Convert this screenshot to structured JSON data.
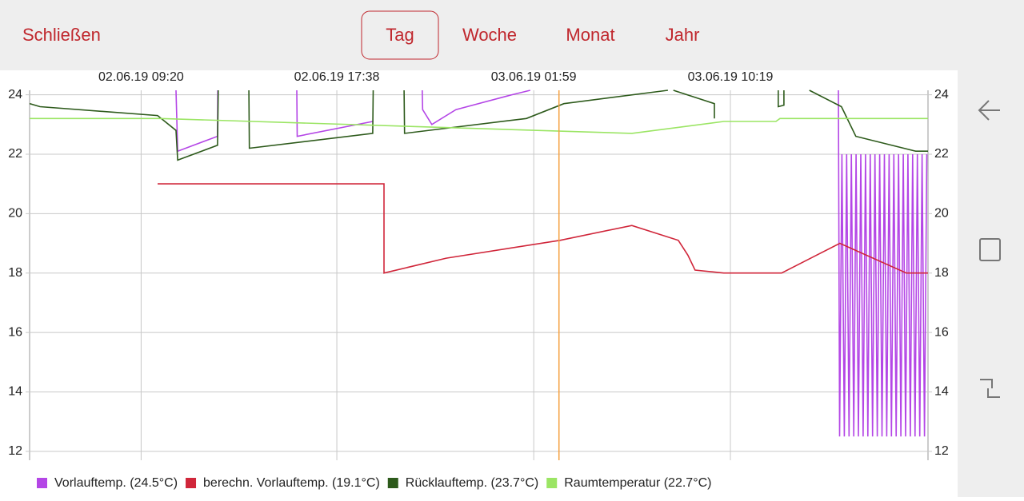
{
  "header": {
    "close": "Schließen",
    "tabs": [
      "Tag",
      "Woche",
      "Monat",
      "Jahr"
    ],
    "selected_tab": 0
  },
  "chart_data": {
    "type": "line",
    "xlim": [
      4.6,
      42.7
    ],
    "xticks": [
      {
        "value": 9.33,
        "label": "02.06.19 09:20"
      },
      {
        "value": 17.63,
        "label": "02.06.19 17:38"
      },
      {
        "value": 25.98,
        "label": "03.06.19 01:59"
      },
      {
        "value": 34.32,
        "label": "03.06.19 10:19"
      }
    ],
    "ylim": [
      11.7,
      24.15
    ],
    "yticks": [
      12,
      14,
      16,
      18,
      20,
      22,
      24
    ],
    "grid": true,
    "cursor_x": 27.05,
    "cursor_color": "#f5a040",
    "series": [
      {
        "name": "Vorlauftemp. (24.5°C)",
        "color": "#b446e6",
        "x": [
          10.81,
          10.88,
          12.57,
          12.58,
          null,
          15.93,
          15.95,
          19.15,
          null,
          21.25,
          21.27,
          21.66,
          22.68,
          25.05,
          25.83,
          null,
          38.9,
          38.95,
          39.05,
          39.15,
          39.25,
          39.35,
          39.45,
          39.55,
          39.65,
          39.75,
          39.85,
          39.95,
          40.05,
          40.15,
          40.25,
          40.35,
          40.45,
          40.55,
          40.65,
          40.75,
          40.85,
          40.95,
          41.05,
          41.15,
          41.25,
          41.35,
          41.45,
          41.55,
          41.65,
          41.75,
          41.85,
          41.95,
          42.05,
          42.15,
          42.25,
          42.35,
          42.45,
          42.55,
          42.65
        ],
        "values": [
          24.15,
          22.1,
          22.6,
          24.15,
          null,
          24.15,
          22.6,
          23.1,
          null,
          24.15,
          23.5,
          23.0,
          23.5,
          24.0,
          24.15,
          null,
          24.15,
          12.5,
          22.0,
          12.5,
          22.0,
          12.5,
          22.0,
          12.5,
          22.0,
          12.5,
          22.0,
          12.5,
          22.0,
          12.5,
          22.0,
          12.5,
          22.0,
          12.5,
          22.0,
          12.5,
          22.0,
          12.5,
          22.0,
          12.5,
          22.0,
          12.5,
          22.0,
          12.5,
          22.0,
          12.5,
          22.0,
          12.5,
          22.0,
          12.5,
          22.0,
          12.5,
          22.0,
          12.5,
          22.0
        ]
      },
      {
        "name": "berechn. Vorlauftemp. (19.1°C)",
        "color": "#d0263a",
        "x": [
          10.03,
          19.63,
          19.63,
          22.27,
          27.09,
          30.14,
          32.11,
          32.52,
          32.82,
          34.04,
          36.49,
          38.96,
          41.78,
          42.7
        ],
        "values": [
          21.0,
          21.0,
          18.0,
          18.5,
          19.1,
          19.6,
          19.1,
          18.6,
          18.1,
          18.0,
          18.0,
          19.0,
          18.0,
          18.0
        ]
      },
      {
        "name": "Rücklauftemp. (23.7°C)",
        "color": "#2d5a1b",
        "x": [
          4.6,
          5.04,
          10.03,
          10.81,
          10.88,
          12.57,
          12.6,
          null,
          13.9,
          13.92,
          19.15,
          19.17,
          null,
          20.48,
          20.5,
          25.67,
          27.26,
          31.67,
          null,
          31.9,
          33.64,
          33.64,
          null,
          36.35,
          36.35,
          36.59,
          36.59,
          null,
          37.67,
          39.03,
          39.64,
          42.18,
          42.7
        ],
        "values": [
          23.7,
          23.6,
          23.3,
          22.8,
          21.8,
          22.3,
          24.15,
          null,
          24.15,
          22.2,
          22.7,
          24.15,
          null,
          24.15,
          22.7,
          23.2,
          23.7,
          24.15,
          null,
          24.15,
          23.7,
          23.2,
          null,
          24.15,
          23.6,
          23.65,
          24.15,
          null,
          24.15,
          23.6,
          22.6,
          22.1,
          22.1
        ]
      },
      {
        "name": "Raumtemperatur (22.7°C)",
        "color": "#9be564",
        "x": [
          4.6,
          10.13,
          30.14,
          34.04,
          36.25,
          36.42,
          42.7
        ],
        "values": [
          23.2,
          23.2,
          22.7,
          23.1,
          23.1,
          23.2,
          23.2
        ]
      }
    ]
  }
}
